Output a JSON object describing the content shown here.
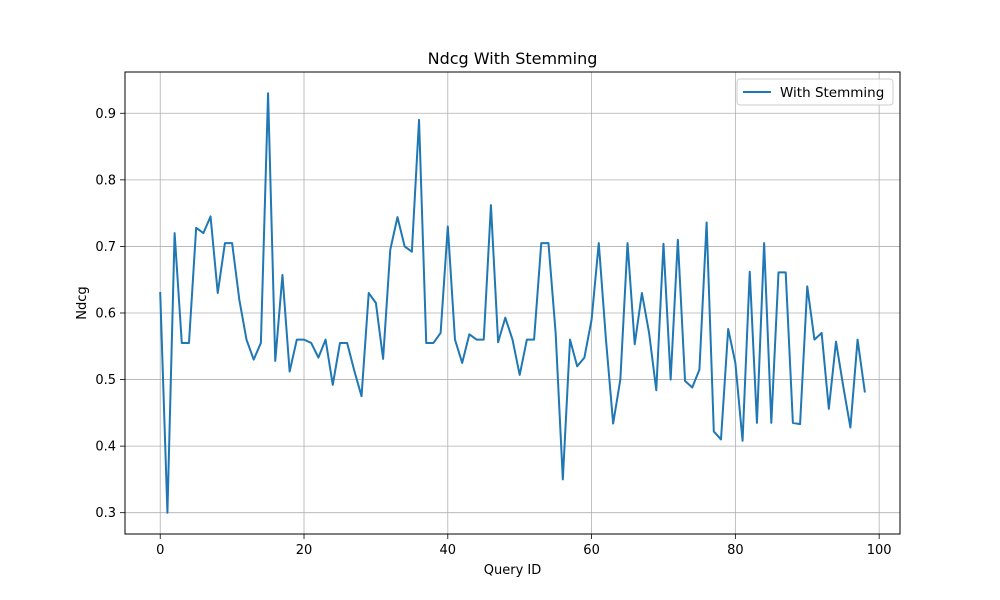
{
  "chart_data": {
    "type": "line",
    "title": "Ndcg With Stemming",
    "xlabel": "Query ID",
    "ylabel": "Ndcg",
    "xlim": [
      -4.9,
      102.9
    ],
    "ylim": [
      0.268,
      0.962
    ],
    "xticks": [
      0,
      20,
      40,
      60,
      80,
      100
    ],
    "yticks": [
      0.3,
      0.4,
      0.5,
      0.6,
      0.7,
      0.8,
      0.9
    ],
    "xtick_labels": [
      "0",
      "20",
      "40",
      "60",
      "80",
      "100"
    ],
    "ytick_labels": [
      "0.3",
      "0.4",
      "0.5",
      "0.6",
      "0.7",
      "0.8",
      "0.9"
    ],
    "grid": true,
    "legend_position": "upper right",
    "series": [
      {
        "name": "With Stemming",
        "color": "#1f77b4",
        "x": [
          0,
          1,
          2,
          3,
          4,
          5,
          6,
          7,
          8,
          9,
          10,
          11,
          12,
          13,
          14,
          15,
          16,
          17,
          18,
          19,
          20,
          21,
          22,
          23,
          24,
          25,
          26,
          27,
          28,
          29,
          30,
          31,
          32,
          33,
          34,
          35,
          36,
          37,
          38,
          39,
          40,
          41,
          42,
          43,
          44,
          45,
          46,
          47,
          48,
          49,
          50,
          51,
          52,
          53,
          54,
          55,
          56,
          57,
          58,
          59,
          60,
          61,
          62,
          63,
          64,
          65,
          66,
          67,
          68,
          69,
          70,
          71,
          72,
          73,
          74,
          75,
          76,
          77,
          78,
          79,
          80,
          81,
          82,
          83,
          84,
          85,
          86,
          87,
          88,
          89,
          90,
          91,
          92,
          93,
          94,
          95,
          96,
          97,
          98
        ],
        "y": [
          0.63,
          0.3,
          0.72,
          0.555,
          0.555,
          0.728,
          0.72,
          0.745,
          0.63,
          0.705,
          0.705,
          0.62,
          0.56,
          0.53,
          0.555,
          0.93,
          0.528,
          0.657,
          0.512,
          0.56,
          0.56,
          0.555,
          0.533,
          0.56,
          0.492,
          0.555,
          0.555,
          0.513,
          0.475,
          0.63,
          0.615,
          0.531,
          0.695,
          0.744,
          0.7,
          0.692,
          0.89,
          0.555,
          0.555,
          0.57,
          0.73,
          0.56,
          0.525,
          0.568,
          0.56,
          0.56,
          0.762,
          0.556,
          0.593,
          0.56,
          0.507,
          0.56,
          0.56,
          0.705,
          0.705,
          0.57,
          0.35,
          0.56,
          0.52,
          0.533,
          0.59,
          0.705,
          0.56,
          0.434,
          0.5,
          0.705,
          0.553,
          0.63,
          0.57,
          0.484,
          0.704,
          0.5,
          0.71,
          0.498,
          0.488,
          0.515,
          0.736,
          0.422,
          0.41,
          0.576,
          0.525,
          0.408,
          0.662,
          0.435,
          0.705,
          0.435,
          0.661,
          0.661,
          0.435,
          0.433,
          0.64,
          0.56,
          0.57,
          0.456,
          0.557,
          0.49,
          0.428,
          0.56,
          0.482
        ]
      }
    ]
  }
}
